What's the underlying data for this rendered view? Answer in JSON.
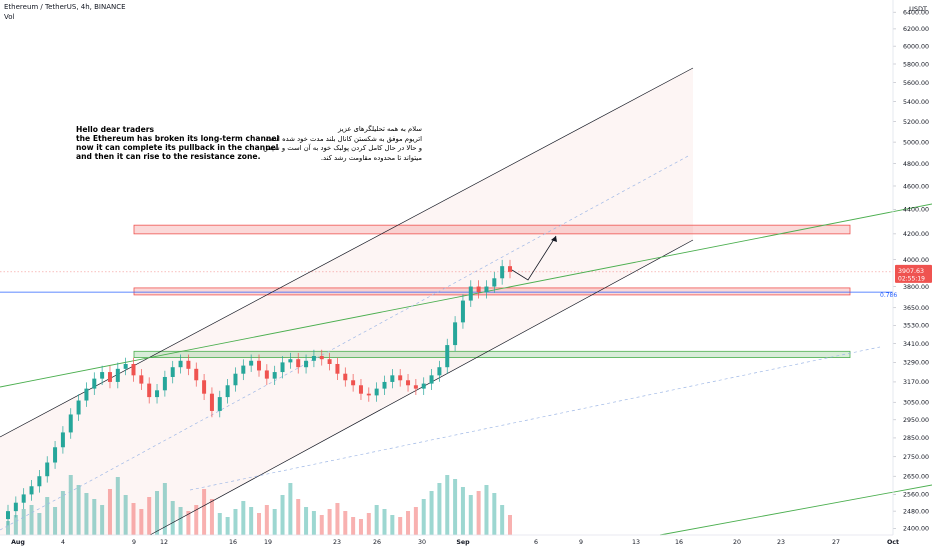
{
  "header": {
    "symbol_title": "Ethereum / TetherUS, 4h, BINANCE",
    "volume_label": "Vol",
    "currency": "USDT"
  },
  "annotations": {
    "english_note": "Hello dear traders\nthe Ethereum has broken its long-term channel\nnow it can complete its pullback in the channel\nand then it can rise to the resistance zone.",
    "persian_note": "سلام به همه تحلیلگرهای عزیز\nاتریوم موفق به شکستن کانال بلند مدت خود شده است\nو حالا در حال کامل کردن پولبک خود به آن است و سپس\nمیتواند تا محدوده مقاومت رشد کند.",
    "fib_label": "0.786"
  },
  "price_badge": {
    "price": "3907.63",
    "countdown": "02:55:19"
  },
  "colors": {
    "candle_up": "#26a69a",
    "candle_down": "#ef5350",
    "resistance_zone": "#ef5350",
    "support_zone": "#4caf50",
    "trendline_green": "#4caf50",
    "channel_black": "#131722",
    "fib_line": "#2962ff",
    "price_line": "#ef5350"
  },
  "chart_data": {
    "type": "candlestick",
    "title": "Ethereum / TetherUS, 4h, BINANCE",
    "y_unit": "USDT",
    "y_ticks": [
      6400,
      6200,
      6000,
      5800,
      5600,
      5400,
      5200,
      5000,
      4800,
      4600,
      4400,
      4200,
      4000,
      3800,
      3650,
      3530,
      3410,
      3290,
      3170,
      3050,
      2950,
      2850,
      2750,
      2650,
      2560,
      2480,
      2400
    ],
    "y_scale": "log",
    "ylim": [
      2370,
      6550
    ],
    "x_ticks": [
      "Aug",
      "4",
      "9",
      "12",
      "16",
      "19",
      "23",
      "26",
      "30",
      "Sep",
      "6",
      "9",
      "13",
      "16",
      "20",
      "23",
      "27",
      "Oct"
    ],
    "current_price": 3907.63,
    "price_path_closes": [
      2480,
      2520,
      2560,
      2600,
      2650,
      2720,
      2800,
      2880,
      2980,
      3060,
      3130,
      3190,
      3230,
      3170,
      3250,
      3280,
      3210,
      3160,
      3080,
      3120,
      3200,
      3260,
      3300,
      3250,
      3180,
      3100,
      3000,
      3080,
      3150,
      3220,
      3270,
      3300,
      3240,
      3190,
      3230,
      3290,
      3310,
      3260,
      3300,
      3330,
      3310,
      3280,
      3220,
      3180,
      3150,
      3100,
      3090,
      3130,
      3170,
      3210,
      3180,
      3150,
      3130,
      3160,
      3210,
      3260,
      3400,
      3550,
      3700,
      3800,
      3760,
      3800,
      3860,
      3950,
      3907.63
    ],
    "horizontal_zones": [
      {
        "name": "resistance zone",
        "from": 4200,
        "to": 4270
      },
      {
        "name": "pullback zone",
        "from": 3740,
        "to": 3790
      },
      {
        "name": "support zone",
        "from": 3320,
        "to": 3360
      }
    ],
    "fib_level": {
      "label": "0.786",
      "value": 3760
    },
    "volume": [
      14,
      20,
      26,
      30,
      22,
      38,
      28,
      44,
      60,
      50,
      42,
      36,
      30,
      46,
      58,
      40,
      32,
      26,
      38,
      44,
      52,
      34,
      28,
      24,
      30,
      46,
      36,
      22,
      18,
      26,
      34,
      28,
      22,
      30,
      26,
      40,
      52,
      36,
      28,
      24,
      20,
      26,
      32,
      24,
      18,
      16,
      22,
      30,
      26,
      20,
      18,
      24,
      28,
      36,
      44,
      52,
      60,
      56,
      48,
      40,
      44,
      50,
      42,
      30,
      20
    ]
  }
}
